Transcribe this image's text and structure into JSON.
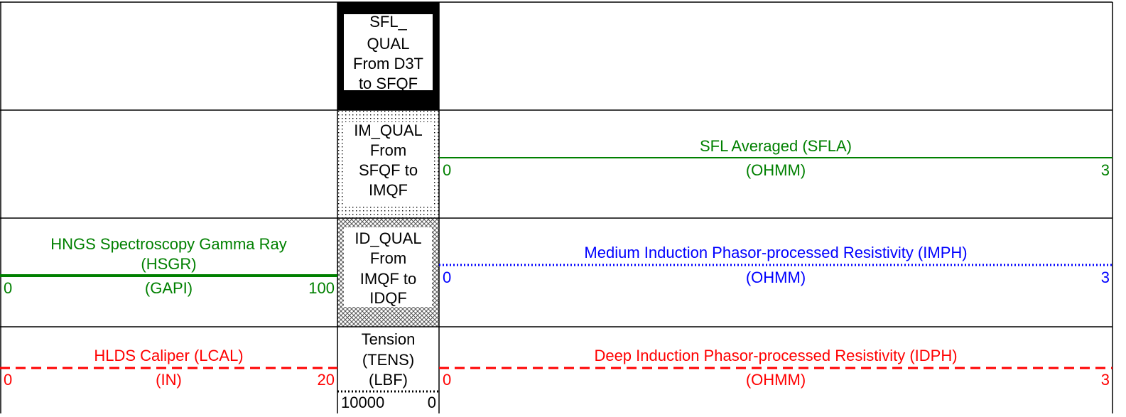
{
  "flags": [
    {
      "lines": [
        "SFL_",
        "QUAL",
        "From D3T",
        "to SFQF"
      ]
    },
    {
      "lines": [
        "IM_QUAL",
        "From",
        "SFQF to",
        "IMQF"
      ]
    },
    {
      "lines": [
        "ID_QUAL",
        "From",
        "IMQF to",
        "IDQF"
      ]
    }
  ],
  "curves": [
    {
      "title": [
        "SFL Averaged (SFLA)"
      ],
      "unit": "(OHMM)",
      "left": 0,
      "right": 3,
      "color": "#008000",
      "style": "solid"
    },
    {
      "title": [
        "HNGS Spectroscopy Gamma Ray",
        "(HSGR)"
      ],
      "unit": "(GAPI)",
      "left": 0,
      "right": 100,
      "color": "#008000",
      "style": "thick"
    },
    {
      "title": [
        "Medium Induction Phasor-processed Resistivity (IMPH)"
      ],
      "unit": "(OHMM)",
      "left": 0,
      "right": 3,
      "color": "#0000ff",
      "style": "dotted"
    },
    {
      "title": [
        "HLDS Caliper (LCAL)"
      ],
      "unit": "(IN)",
      "left": 0,
      "right": 20,
      "color": "#ff0000",
      "style": "dashed"
    },
    {
      "title": [
        "Tension",
        "(TENS)",
        "(LBF)"
      ],
      "left": 10000,
      "right": 0,
      "color": "#000000",
      "style": "dotted"
    },
    {
      "title": [
        "Deep Induction Phasor-processed Resistivity (IDPH)"
      ],
      "unit": "(OHMM)",
      "left": 0,
      "right": 3,
      "color": "#ff0000",
      "style": "dashed"
    }
  ]
}
